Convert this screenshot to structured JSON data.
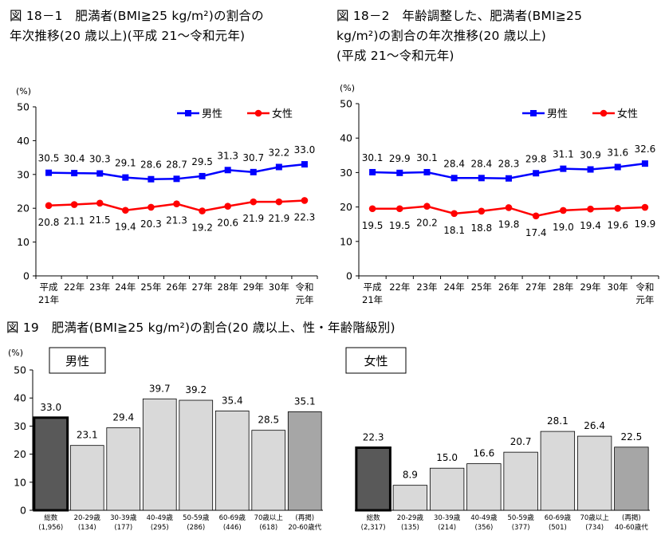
{
  "chart_data": [
    {
      "type": "line",
      "title_lines": [
        "図 18－1　肥満者(BMI≧25 kg/m²)の割合の",
        "年次推移(20 歳以上)(平成 21～令和元年)"
      ],
      "ylabel": "(%)",
      "ylim": [
        0,
        50
      ],
      "yticks": [
        0,
        10,
        20,
        30,
        40,
        50
      ],
      "categories": [
        [
          "平成",
          "21年"
        ],
        [
          "22年"
        ],
        [
          "23年"
        ],
        [
          "24年"
        ],
        [
          "25年"
        ],
        [
          "26年"
        ],
        [
          "27年"
        ],
        [
          "28年"
        ],
        [
          "29年"
        ],
        [
          "30年"
        ],
        [
          "令和",
          "元年"
        ]
      ],
      "series": [
        {
          "name": "男性",
          "color": "#0000ff",
          "marker": "square",
          "values": [
            30.5,
            30.4,
            30.3,
            29.1,
            28.6,
            28.7,
            29.5,
            31.3,
            30.7,
            32.2,
            33.0
          ],
          "labels": [
            "30.5",
            "30.4",
            "30.3",
            "29.1",
            "28.6",
            "28.7",
            "29.5",
            "31.3",
            "30.7",
            "32.2",
            "33.0"
          ]
        },
        {
          "name": "女性",
          "color": "#ff0000",
          "marker": "circle",
          "values": [
            20.8,
            21.1,
            21.5,
            19.4,
            20.3,
            21.3,
            19.2,
            20.6,
            21.9,
            21.9,
            22.3
          ],
          "labels": [
            "20.8",
            "21.1",
            "21.5",
            "19.4",
            "20.3",
            "21.3",
            "19.2",
            "20.6",
            "21.9",
            "21.9",
            "22.3"
          ]
        }
      ],
      "legend": "top-right",
      "grid": false
    },
    {
      "type": "line",
      "title_lines": [
        "図 18－2　年齢調整した、肥満者(BMI≧25",
        "kg/m²)の割合の年次推移(20 歳以上)",
        "(平成 21～令和元年)"
      ],
      "ylabel": "(%)",
      "ylim": [
        0,
        50
      ],
      "yticks": [
        0,
        10,
        20,
        30,
        40,
        50
      ],
      "categories": [
        [
          "平成",
          "21年"
        ],
        [
          "22年"
        ],
        [
          "23年"
        ],
        [
          "24年"
        ],
        [
          "25年"
        ],
        [
          "26年"
        ],
        [
          "27年"
        ],
        [
          "28年"
        ],
        [
          "29年"
        ],
        [
          "30年"
        ],
        [
          "令和",
          "元年"
        ]
      ],
      "series": [
        {
          "name": "男性",
          "color": "#0000ff",
          "marker": "square",
          "values": [
            30.1,
            29.9,
            30.1,
            28.4,
            28.4,
            28.3,
            29.8,
            31.1,
            30.9,
            31.6,
            32.6
          ],
          "labels": [
            "30.1",
            "29.9",
            "30.1",
            "28.4",
            "28.4",
            "28.3",
            "29.8",
            "31.1",
            "30.9",
            "31.6",
            "32.6"
          ]
        },
        {
          "name": "女性",
          "color": "#ff0000",
          "marker": "circle",
          "values": [
            19.5,
            19.5,
            20.2,
            18.1,
            18.8,
            19.8,
            17.4,
            19.0,
            19.4,
            19.6,
            19.9
          ],
          "labels": [
            "19.5",
            "19.5",
            "20.2",
            "18.1",
            "18.8",
            "19.8",
            "17.4",
            "19.0",
            "19.4",
            "19.6",
            "19.9"
          ]
        }
      ],
      "legend": "top-right",
      "grid": false
    },
    {
      "type": "bar",
      "title": "図 19　肥満者(BMI≧25 kg/m²)の割合(20 歳以上、性・年齢階級別)",
      "ylabel": "(%)",
      "ylim": [
        0,
        50
      ],
      "yticks": [
        0,
        10,
        20,
        30,
        40,
        50
      ],
      "panels": [
        {
          "name": "男性",
          "categories": [
            [
              "総数",
              "(1,956)"
            ],
            [
              "20-29歳",
              "(134)"
            ],
            [
              "30-39歳",
              "(177)"
            ],
            [
              "40-49歳",
              "(295)"
            ],
            [
              "50-59歳",
              "(286)"
            ],
            [
              "60-69歳",
              "(446)"
            ],
            [
              "70歳以上",
              "(618)"
            ],
            [
              "(再掲)",
              "20-60歳代"
            ]
          ],
          "values": [
            33.0,
            23.1,
            29.4,
            39.7,
            39.2,
            35.4,
            28.5,
            35.1
          ],
          "labels": [
            "33.0",
            "23.1",
            "29.4",
            "39.7",
            "39.2",
            "35.4",
            "28.5",
            "35.1"
          ],
          "colors": [
            "#595959",
            "#d9d9d9",
            "#d9d9d9",
            "#d9d9d9",
            "#d9d9d9",
            "#d9d9d9",
            "#d9d9d9",
            "#a6a6a6"
          ]
        },
        {
          "name": "女性",
          "categories": [
            [
              "総数",
              "(2,317)"
            ],
            [
              "20-29歳",
              "(135)"
            ],
            [
              "30-39歳",
              "(214)"
            ],
            [
              "40-49歳",
              "(356)"
            ],
            [
              "50-59歳",
              "(377)"
            ],
            [
              "60-69歳",
              "(501)"
            ],
            [
              "70歳以上",
              "(734)"
            ],
            [
              "(再掲)",
              "40-60歳代"
            ]
          ],
          "values": [
            22.3,
            8.9,
            15.0,
            16.6,
            20.7,
            28.1,
            26.4,
            22.5
          ],
          "labels": [
            "22.3",
            "8.9",
            "15.0",
            "16.6",
            "20.7",
            "28.1",
            "26.4",
            "22.5"
          ],
          "colors": [
            "#595959",
            "#d9d9d9",
            "#d9d9d9",
            "#d9d9d9",
            "#d9d9d9",
            "#d9d9d9",
            "#d9d9d9",
            "#a6a6a6"
          ]
        }
      ],
      "grid": false
    }
  ]
}
